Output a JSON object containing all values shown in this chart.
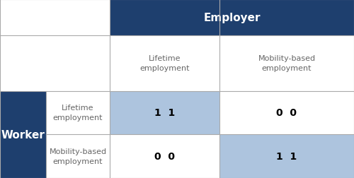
{
  "title": "Employer",
  "row_header": "Worker",
  "col_labels": [
    "Lifetime\nemployment",
    "Mobility-based\nemployment"
  ],
  "row_labels": [
    "Lifetime\nemployment",
    "Mobility-based\nemployment"
  ],
  "payoffs": [
    [
      "1  1",
      "0  0"
    ],
    [
      "0  0",
      "1  1"
    ]
  ],
  "dark_blue": "#1e3f6e",
  "light_blue": "#adc4de",
  "header_text_color": "#ffffff",
  "label_text_color": "#666666",
  "bg_color": "#ffffff",
  "border_color": "#aaaaaa",
  "figsize": [
    5.0,
    2.53
  ],
  "dpi": 100
}
